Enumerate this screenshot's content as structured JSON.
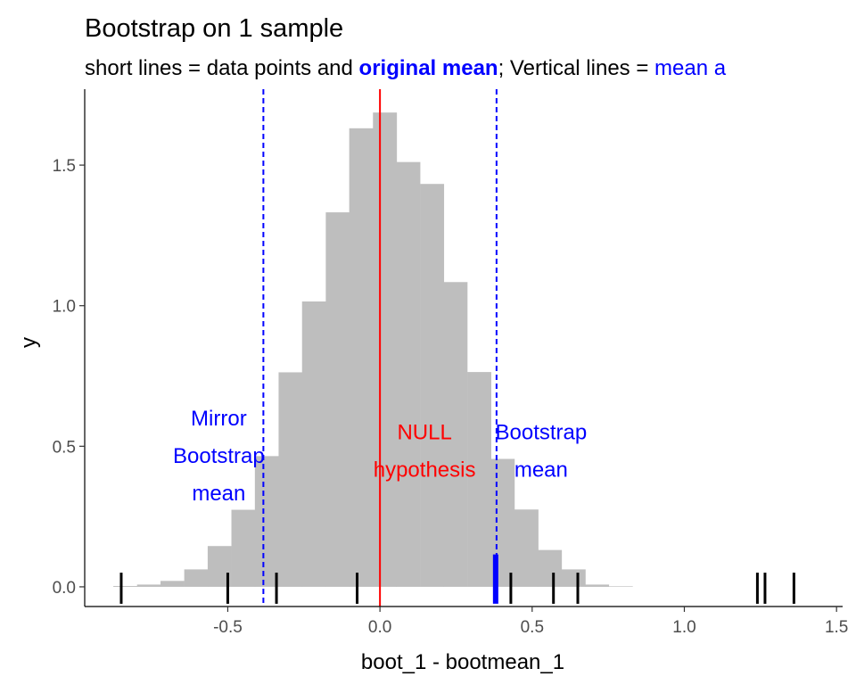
{
  "chart_data": {
    "type": "bar",
    "title": "Bootstrap on 1 sample",
    "subtitle": {
      "parts": [
        {
          "text": "short lines = data points and ",
          "color": "#000000",
          "bold": false
        },
        {
          "text": "original mean",
          "color": "#0000ff",
          "bold": true
        },
        {
          "text": "; Vertical lines = ",
          "color": "#000000",
          "bold": false
        },
        {
          "text": "mean a",
          "color": "#0000ff",
          "bold": false
        }
      ]
    },
    "xlabel": "boot_1 - bootmean_1",
    "ylabel": "y",
    "xlim": [
      -0.97,
      1.52
    ],
    "ylim": [
      -0.07,
      1.77
    ],
    "x_ticks": [
      {
        "value": -0.5,
        "label": "-0.5"
      },
      {
        "value": 0.0,
        "label": "0.0"
      },
      {
        "value": 0.5,
        "label": "0.5"
      },
      {
        "value": 1.0,
        "label": "1.0"
      },
      {
        "value": 1.5,
        "label": "1.5"
      }
    ],
    "y_ticks": [
      {
        "value": 0.0,
        "label": "0.0"
      },
      {
        "value": 0.5,
        "label": "0.5"
      },
      {
        "value": 1.0,
        "label": "1.0"
      },
      {
        "value": 1.5,
        "label": "1.5"
      }
    ],
    "grid": false,
    "histogram": {
      "color": "#bebebe",
      "bin_width": 0.0775,
      "bins": [
        {
          "start": -0.876,
          "density": 0.003
        },
        {
          "start": -0.798,
          "density": 0.008
        },
        {
          "start": -0.721,
          "density": 0.021
        },
        {
          "start": -0.643,
          "density": 0.062
        },
        {
          "start": -0.566,
          "density": 0.145
        },
        {
          "start": -0.488,
          "density": 0.274
        },
        {
          "start": -0.411,
          "density": 0.465
        },
        {
          "start": -0.333,
          "density": 0.763
        },
        {
          "start": -0.256,
          "density": 1.015
        },
        {
          "start": -0.178,
          "density": 1.332
        },
        {
          "start": -0.101,
          "density": 1.631
        },
        {
          "start": -0.023,
          "density": 1.687
        },
        {
          "start": 0.054,
          "density": 1.511
        },
        {
          "start": 0.132,
          "density": 1.433
        },
        {
          "start": 0.209,
          "density": 1.084
        },
        {
          "start": 0.287,
          "density": 0.764
        },
        {
          "start": 0.364,
          "density": 0.455
        },
        {
          "start": 0.442,
          "density": 0.275
        },
        {
          "start": 0.519,
          "density": 0.131
        },
        {
          "start": 0.597,
          "density": 0.062
        },
        {
          "start": 0.674,
          "density": 0.008
        },
        {
          "start": 0.752,
          "density": 0.002
        }
      ]
    },
    "data_points": [
      -0.85,
      -0.5,
      -0.34,
      -0.075,
      0.43,
      0.57,
      0.65,
      1.24,
      1.265,
      1.36
    ],
    "original_mean": 0.38,
    "bootstrap_mean": 0.383,
    "mirror_bootstrap_mean": -0.383,
    "null_hypothesis": 0.0,
    "colors": {
      "null": "#ff0000",
      "mean": "#0000ff",
      "points": "#000000",
      "axis": "#000000"
    },
    "annotations": {
      "mirror": {
        "lines": [
          "Mirror",
          "Bootstrap",
          "mean"
        ],
        "color": "#0000ff"
      },
      "null": {
        "lines": [
          "NULL",
          "hypothesis"
        ],
        "color": "#ff0000"
      },
      "boot": {
        "lines": [
          "Bootstrap",
          "mean"
        ],
        "color": "#0000ff"
      }
    }
  }
}
